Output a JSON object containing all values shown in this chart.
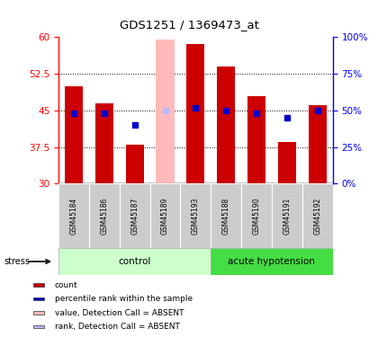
{
  "title": "GDS1251 / 1369473_at",
  "samples": [
    "GSM45184",
    "GSM45186",
    "GSM45187",
    "GSM45189",
    "GSM45193",
    "GSM45188",
    "GSM45190",
    "GSM45191",
    "GSM45192"
  ],
  "bar_values": [
    50.0,
    46.5,
    38.0,
    59.5,
    58.5,
    54.0,
    48.0,
    38.5,
    46.0
  ],
  "rank_values": [
    44.5,
    44.5,
    42.0,
    45.0,
    45.5,
    45.0,
    44.5,
    43.5,
    45.0
  ],
  "absent": [
    false,
    false,
    false,
    true,
    false,
    false,
    false,
    false,
    false
  ],
  "control_group_count": 5,
  "acute_group_count": 4,
  "ylim_left": [
    30,
    60
  ],
  "ylim_right": [
    0,
    100
  ],
  "yticks_left": [
    30,
    37.5,
    45,
    52.5,
    60
  ],
  "yticks_right": [
    0,
    25,
    50,
    75,
    100
  ],
  "bar_color": "#cc0000",
  "bar_absent_color": "#ffbbbb",
  "rank_color": "#0000cc",
  "rank_absent_color": "#bbbbff",
  "control_bg": "#ccffcc",
  "acute_bg": "#44dd44",
  "xlabel_bg": "#cccccc"
}
